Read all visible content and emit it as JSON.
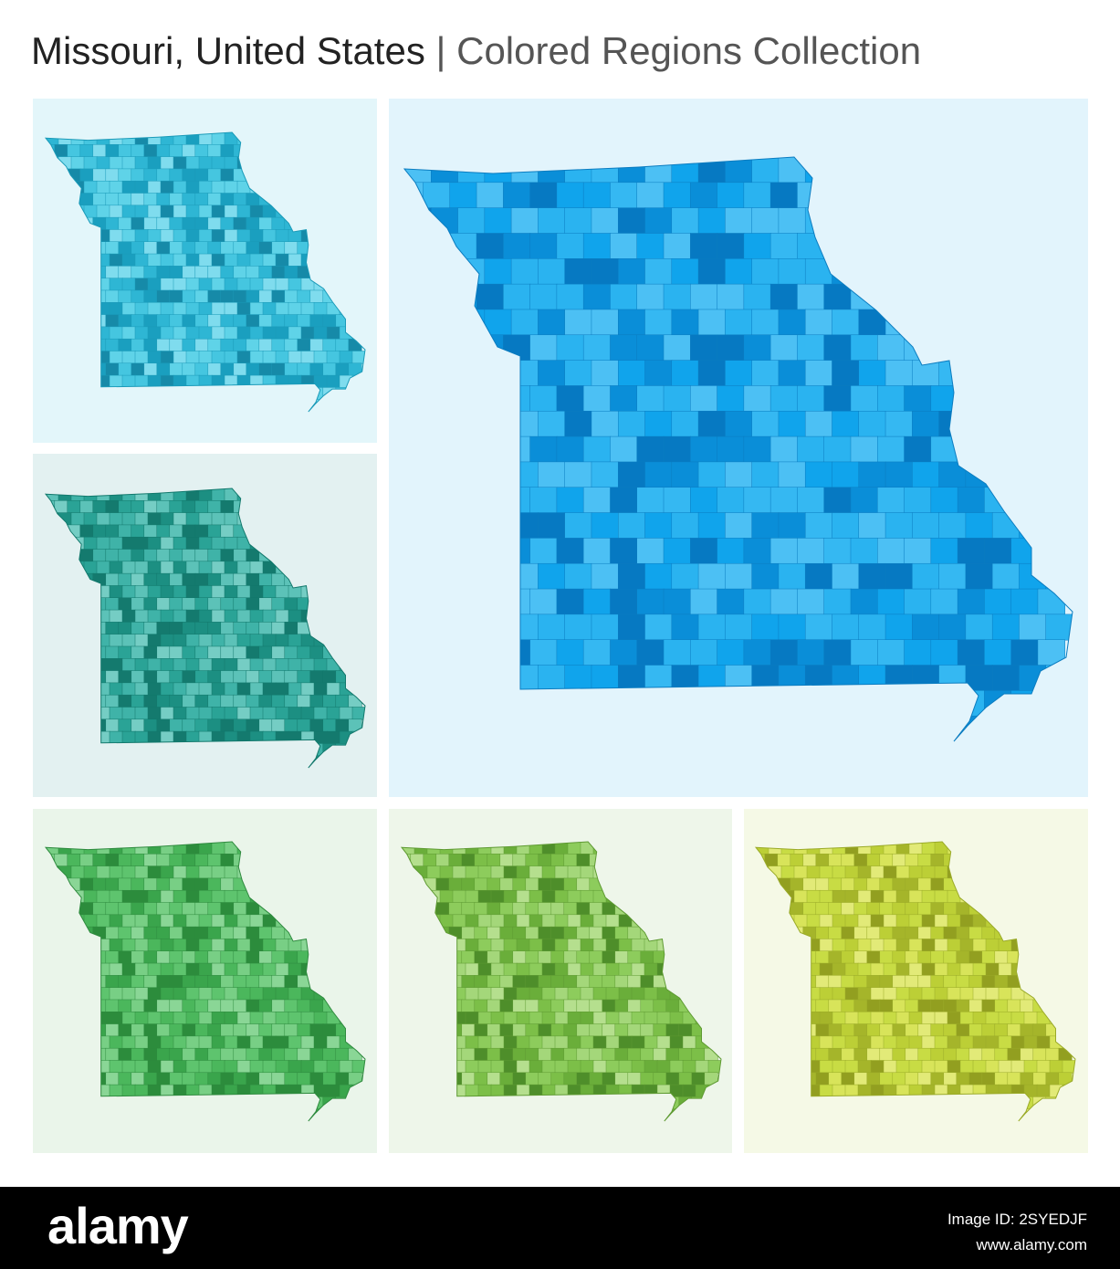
{
  "header": {
    "title": "Missouri, United States",
    "separator": "|",
    "subtitle": "Colored Regions Collection"
  },
  "footer": {
    "logo": "alamy",
    "image_id": "Image ID: 2SYEDJF",
    "url": "www.alamy.com"
  }
}
